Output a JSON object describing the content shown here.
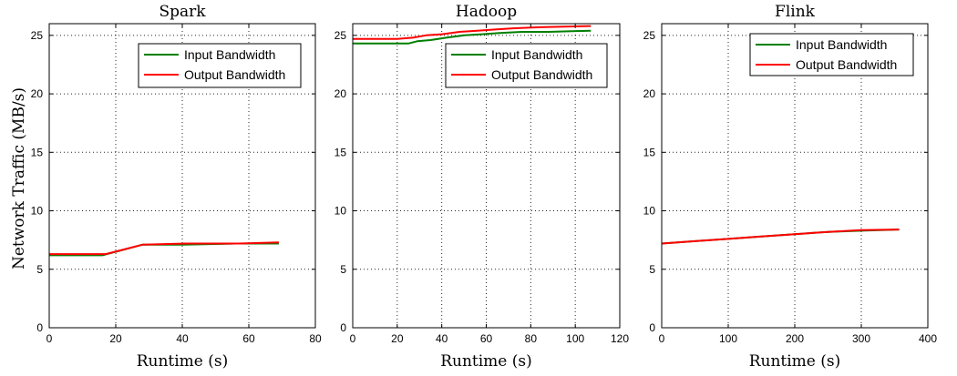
{
  "figure": {
    "ylabel": "Network Traffic (MB/s)"
  },
  "chart_data": [
    {
      "type": "line",
      "title": "Spark",
      "xlabel": "Runtime (s)",
      "ylabel": "Network Traffic (MB/s)",
      "xlim": [
        0,
        80
      ],
      "ylim": [
        0,
        26
      ],
      "xticks": [
        0,
        20,
        40,
        60,
        80
      ],
      "yticks": [
        0,
        5,
        10,
        15,
        20,
        25
      ],
      "grid": true,
      "legend_position": "top-right",
      "series": [
        {
          "name": "Input Bandwidth",
          "color": "#007f00",
          "x": [
            0,
            16,
            28,
            40,
            56,
            69
          ],
          "y": [
            6.2,
            6.2,
            7.1,
            7.1,
            7.2,
            7.2
          ]
        },
        {
          "name": "Output Bandwidth",
          "color": "#ff0000",
          "x": [
            0,
            17,
            28,
            41,
            57,
            69
          ],
          "y": [
            6.3,
            6.3,
            7.1,
            7.2,
            7.2,
            7.3
          ]
        }
      ]
    },
    {
      "type": "line",
      "title": "Hadoop",
      "xlabel": "Runtime (s)",
      "ylabel": "",
      "xlim": [
        0,
        120
      ],
      "ylim": [
        0,
        26
      ],
      "xticks": [
        0,
        20,
        40,
        60,
        80,
        100,
        120
      ],
      "yticks": [
        0,
        5,
        10,
        15,
        20,
        25
      ],
      "grid": true,
      "legend_position": "top-right",
      "series": [
        {
          "name": "Input Bandwidth",
          "color": "#007f00",
          "x": [
            0,
            25,
            29,
            35,
            42,
            50,
            58,
            66,
            76,
            88,
            107
          ],
          "y": [
            24.3,
            24.3,
            24.5,
            24.6,
            24.8,
            25.0,
            25.1,
            25.2,
            25.3,
            25.3,
            25.4
          ]
        },
        {
          "name": "Output Bandwidth",
          "color": "#ff0000",
          "x": [
            0,
            20,
            27,
            33,
            40,
            48,
            56,
            64,
            72,
            84,
            107
          ],
          "y": [
            24.7,
            24.7,
            24.8,
            25.0,
            25.1,
            25.3,
            25.4,
            25.5,
            25.6,
            25.7,
            25.8
          ]
        }
      ]
    },
    {
      "type": "line",
      "title": "Flink",
      "xlabel": "Runtime (s)",
      "ylabel": "",
      "xlim": [
        0,
        400
      ],
      "ylim": [
        0,
        26
      ],
      "xticks": [
        0,
        100,
        200,
        300,
        400
      ],
      "yticks": [
        0,
        5,
        10,
        15,
        20,
        25
      ],
      "grid": true,
      "legend_position": "top-right",
      "series": [
        {
          "name": "Input Bandwidth",
          "color": "#007f00",
          "x": [
            0,
            50,
            100,
            150,
            200,
            250,
            300,
            357
          ],
          "y": [
            7.2,
            7.4,
            7.6,
            7.8,
            8.0,
            8.2,
            8.3,
            8.4
          ]
        },
        {
          "name": "Output Bandwidth",
          "color": "#ff0000",
          "x": [
            0,
            50,
            100,
            150,
            200,
            250,
            300,
            357
          ],
          "y": [
            7.2,
            7.4,
            7.6,
            7.8,
            8.0,
            8.2,
            8.35,
            8.4
          ]
        }
      ]
    }
  ]
}
